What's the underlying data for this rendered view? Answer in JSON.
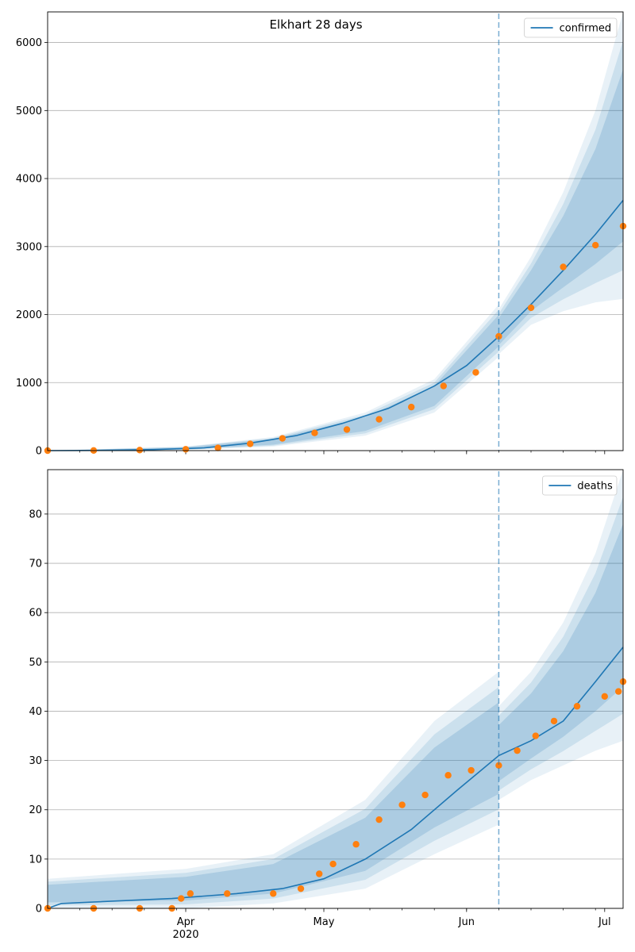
{
  "chart_data": [
    {
      "type": "line",
      "title": "Elkhart 28 days",
      "xlabel": "",
      "ylabel": "",
      "x_range": [
        "2020-03-02",
        "2020-07-05"
      ],
      "ylim": [
        0,
        6450
      ],
      "yticks": [
        0,
        1000,
        2000,
        3000,
        4000,
        5000,
        6000
      ],
      "grid": "horizontal",
      "legend_position": "top-right",
      "forecast_start": "2020-06-08",
      "series": [
        {
          "name": "confirmed",
          "kind": "line",
          "color": "#1f77b4",
          "x": [
            "2020-03-02",
            "2020-03-15",
            "2020-03-25",
            "2020-04-05",
            "2020-04-15",
            "2020-04-25",
            "2020-05-05",
            "2020-05-15",
            "2020-05-25",
            "2020-06-01",
            "2020-06-08",
            "2020-06-15",
            "2020-06-22",
            "2020-06-29",
            "2020-07-05"
          ],
          "y": [
            0,
            5,
            15,
            40,
            110,
            220,
            400,
            620,
            950,
            1250,
            1680,
            2150,
            2650,
            3180,
            3680
          ]
        },
        {
          "name": "",
          "kind": "scatter",
          "color": "#ff7f0e",
          "x": [
            "2020-03-02",
            "2020-03-12",
            "2020-03-22",
            "2020-04-01",
            "2020-04-08",
            "2020-04-15",
            "2020-04-22",
            "2020-04-29",
            "2020-05-06",
            "2020-05-13",
            "2020-05-20",
            "2020-05-27",
            "2020-06-03",
            "2020-06-08",
            "2020-06-15",
            "2020-06-22",
            "2020-06-29",
            "2020-07-05"
          ],
          "y": [
            0,
            2,
            8,
            20,
            40,
            100,
            180,
            260,
            310,
            460,
            640,
            950,
            1150,
            1680,
            2100,
            2700,
            3020,
            3300
          ]
        }
      ],
      "bands": [
        {
          "x": [
            "2020-03-02",
            "2020-04-01",
            "2020-04-20",
            "2020-05-10",
            "2020-05-25",
            "2020-06-08"
          ],
          "low": [
            0,
            10,
            60,
            220,
            560,
            1380
          ],
          "high": [
            0,
            60,
            200,
            560,
            1050,
            2150
          ]
        },
        {
          "x": [
            "2020-06-08",
            "2020-06-15",
            "2020-06-22",
            "2020-06-29",
            "2020-07-05"
          ],
          "low": [
            1420,
            1850,
            2050,
            2180,
            2230
          ],
          "high": [
            2080,
            2850,
            3800,
            5000,
            6450
          ]
        }
      ]
    },
    {
      "type": "line",
      "title": "",
      "xlabel": "",
      "ylabel": "",
      "x_range": [
        "2020-03-02",
        "2020-07-05"
      ],
      "ylim": [
        0,
        89
      ],
      "yticks": [
        0,
        10,
        20,
        30,
        40,
        50,
        60,
        70,
        80
      ],
      "xticks": [
        {
          "date": "2020-04-01",
          "label": "Apr",
          "sublabel": "2020"
        },
        {
          "date": "2020-05-01",
          "label": "May",
          "sublabel": ""
        },
        {
          "date": "2020-06-01",
          "label": "Jun",
          "sublabel": ""
        },
        {
          "date": "2020-07-01",
          "label": "Jul",
          "sublabel": ""
        }
      ],
      "grid": "horizontal",
      "legend_position": "top-right",
      "forecast_start": "2020-06-08",
      "series": [
        {
          "name": "deaths",
          "kind": "line",
          "color": "#1f77b4",
          "x": [
            "2020-03-02",
            "2020-03-05",
            "2020-03-29",
            "2020-04-12",
            "2020-04-22",
            "2020-05-01",
            "2020-05-10",
            "2020-05-20",
            "2020-05-30",
            "2020-06-08",
            "2020-06-15",
            "2020-06-22",
            "2020-06-29",
            "2020-07-05"
          ],
          "y": [
            0,
            1,
            2,
            3,
            4,
            6,
            10,
            16,
            24,
            31,
            34,
            38,
            46,
            53
          ]
        },
        {
          "name": "",
          "kind": "scatter",
          "color": "#ff7f0e",
          "x": [
            "2020-03-02",
            "2020-03-12",
            "2020-03-22",
            "2020-03-29",
            "2020-03-31",
            "2020-04-02",
            "2020-04-10",
            "2020-04-20",
            "2020-04-26",
            "2020-04-30",
            "2020-05-03",
            "2020-05-08",
            "2020-05-13",
            "2020-05-18",
            "2020-05-23",
            "2020-05-28",
            "2020-06-02",
            "2020-06-08",
            "2020-06-12",
            "2020-06-16",
            "2020-06-20",
            "2020-06-25",
            "2020-07-01",
            "2020-07-04",
            "2020-07-05"
          ],
          "y": [
            0,
            0,
            0,
            0,
            2,
            3,
            3,
            3,
            4,
            7,
            9,
            13,
            18,
            21,
            23,
            27,
            28,
            29,
            32,
            35,
            38,
            41,
            43,
            44,
            46
          ]
        }
      ],
      "bands": [
        {
          "x": [
            "2020-03-02",
            "2020-04-01",
            "2020-04-20",
            "2020-05-10",
            "2020-05-25",
            "2020-06-08"
          ],
          "low": [
            0,
            0,
            1,
            4,
            11,
            17
          ],
          "high": [
            6,
            8,
            11,
            22,
            38,
            48
          ]
        },
        {
          "x": [
            "2020-06-08",
            "2020-06-15",
            "2020-06-22",
            "2020-06-29",
            "2020-07-05"
          ],
          "low": [
            22,
            26,
            29,
            32,
            34
          ],
          "high": [
            41,
            48,
            58,
            72,
            89
          ]
        }
      ]
    }
  ]
}
